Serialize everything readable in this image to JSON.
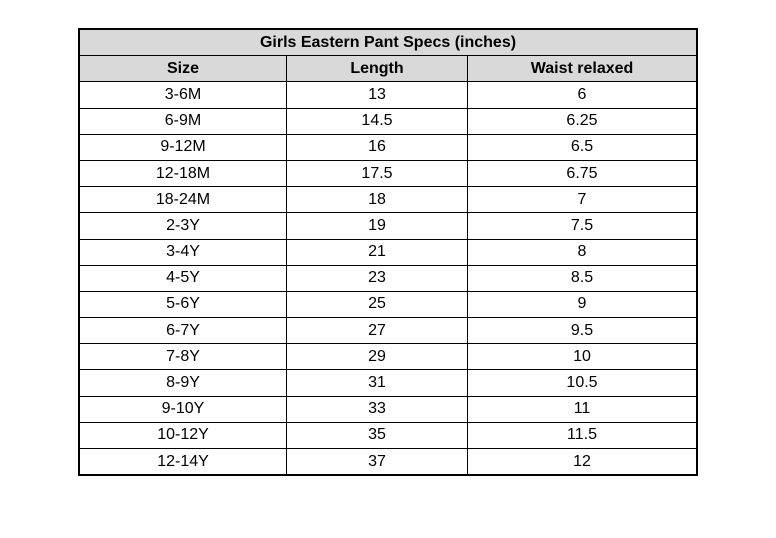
{
  "table": {
    "title": "Girls Eastern Pant Specs (inches)",
    "columns": [
      "Size",
      "Length",
      "Waist relaxed"
    ],
    "rows": [
      [
        "3-6M",
        "13",
        "6"
      ],
      [
        "6-9M",
        "14.5",
        "6.25"
      ],
      [
        "9-12M",
        "16",
        "6.5"
      ],
      [
        "12-18M",
        "17.5",
        "6.75"
      ],
      [
        "18-24M",
        "18",
        "7"
      ],
      [
        "2-3Y",
        "19",
        "7.5"
      ],
      [
        "3-4Y",
        "21",
        "8"
      ],
      [
        "4-5Y",
        "23",
        "8.5"
      ],
      [
        "5-6Y",
        "25",
        "9"
      ],
      [
        "6-7Y",
        "27",
        "9.5"
      ],
      [
        "7-8Y",
        "29",
        "10"
      ],
      [
        "8-9Y",
        "31",
        "10.5"
      ],
      [
        "9-10Y",
        "33",
        "11"
      ],
      [
        "10-12Y",
        "35",
        "11.5"
      ],
      [
        "12-14Y",
        "37",
        "12"
      ]
    ],
    "header_fill": "#d9d9d9"
  }
}
